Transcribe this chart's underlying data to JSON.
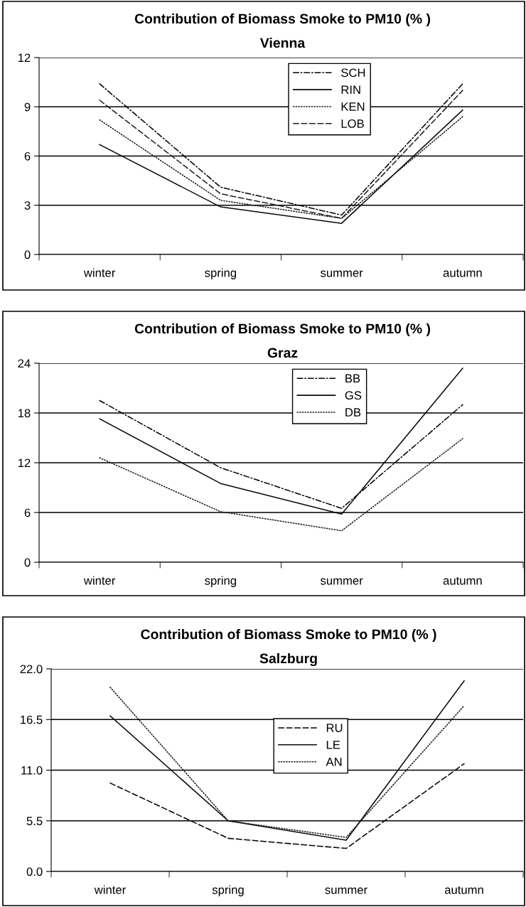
{
  "chart_data": [
    {
      "type": "line",
      "title": "Contribution of Biomass Smoke to PM10 (% )",
      "subtitle": "Vienna",
      "categories": [
        "winter",
        "spring",
        "summer",
        "autumn"
      ],
      "ylim": [
        0,
        12
      ],
      "yticks": [
        0,
        3,
        6,
        9,
        12
      ],
      "grid": "y",
      "legend": "top",
      "marker": "none",
      "series": [
        {
          "name": "SCH",
          "color": "#000000",
          "line_style": "dashdot",
          "values": [
            10.4,
            4.1,
            2.4,
            10.4
          ]
        },
        {
          "name": "RIN",
          "color": "#0a0a0a",
          "line_style": "solid",
          "values": [
            6.7,
            2.9,
            1.9,
            8.8
          ]
        },
        {
          "name": "KEN",
          "color": "#141414",
          "line_style": "dotted",
          "values": [
            8.2,
            3.3,
            2.2,
            8.4
          ]
        },
        {
          "name": "LOB",
          "color": "#1e1e1e",
          "line_style": "dashed",
          "values": [
            9.4,
            3.7,
            2.2,
            10.0
          ]
        }
      ]
    },
    {
      "type": "line",
      "title": "Contribution of Biomass Smoke to PM10 (% )",
      "subtitle": "Graz",
      "categories": [
        "winter",
        "spring",
        "summer",
        "autumn"
      ],
      "ylim": [
        0,
        24
      ],
      "yticks": [
        0,
        6,
        12,
        18,
        24
      ],
      "grid": "y",
      "legend": "top",
      "marker": "none",
      "series": [
        {
          "name": "BB",
          "color": "#000000",
          "line_style": "dashdot",
          "values": [
            19.5,
            11.4,
            6.5,
            19.0
          ]
        },
        {
          "name": "GS",
          "color": "#0a0a0a",
          "line_style": "solid",
          "values": [
            17.3,
            9.5,
            5.8,
            23.4
          ]
        },
        {
          "name": "DB",
          "color": "#141414",
          "line_style": "dotted",
          "values": [
            12.6,
            6.1,
            3.8,
            14.9
          ]
        }
      ]
    },
    {
      "type": "line",
      "title": "Contribution of Biomass Smoke to PM10 (% )",
      "subtitle": "Salzburg",
      "categories": [
        "winter",
        "spring",
        "summer",
        "autumn"
      ],
      "ylim": [
        0,
        22
      ],
      "yticks": [
        {
          "value": 0,
          "label": "0.0"
        },
        5.5,
        {
          "value": 11,
          "label": "11.0"
        },
        16.5,
        {
          "value": 22,
          "label": "22.0"
        }
      ],
      "grid": "y",
      "legend": "center",
      "marker": "none",
      "series": [
        {
          "name": "RU",
          "color": "#000000",
          "line_style": "dashed",
          "values": [
            9.6,
            3.6,
            2.5,
            11.7
          ]
        },
        {
          "name": "LE",
          "color": "#0a0a0a",
          "line_style": "solid",
          "values": [
            16.9,
            5.5,
            3.4,
            20.7
          ]
        },
        {
          "name": "AN",
          "color": "#141414",
          "line_style": "dotted",
          "values": [
            20.0,
            5.5,
            3.7,
            18.0
          ]
        }
      ]
    }
  ]
}
